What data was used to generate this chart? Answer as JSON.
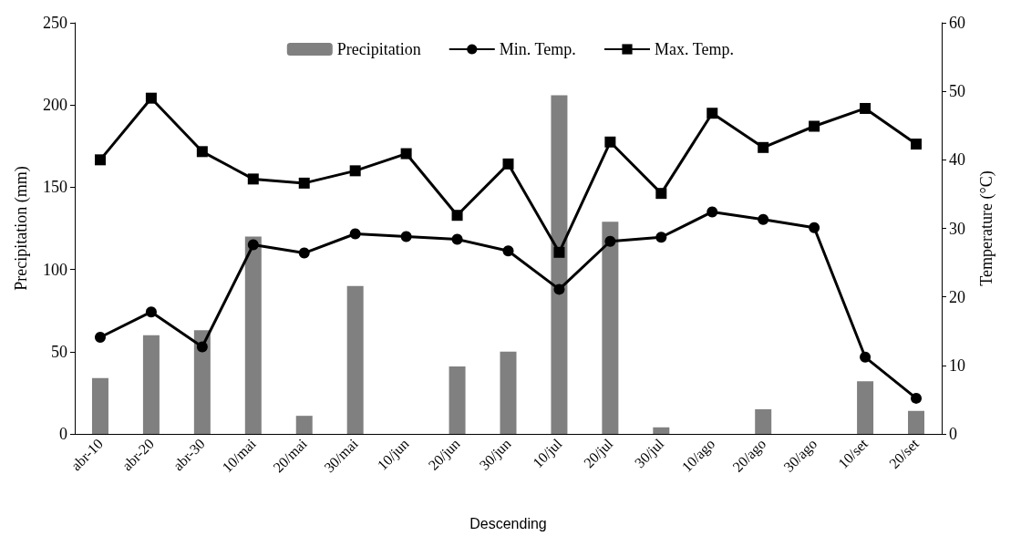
{
  "chart_data": {
    "type": "bar",
    "xlabel": "Descending",
    "ylabel": "Precipitation (mm)",
    "y2label": "Temperature (°C)",
    "categories": [
      "abr-10",
      "abr-20",
      "abr-30",
      "10/mai",
      "20/mai",
      "30/mai",
      "10/jun",
      "20/jun",
      "30/jun",
      "10/jul",
      "20/jul",
      "30/jul",
      "10/ago",
      "20/ago",
      "30/ago",
      "10/set",
      "20/set"
    ],
    "series": [
      {
        "name": "Precipitation",
        "color": "#808080",
        "values": [
          34,
          60,
          63,
          120,
          11,
          90,
          0,
          41,
          50,
          206,
          129,
          4,
          0,
          15,
          0,
          32,
          14
        ]
      },
      {
        "name": "Min. Temp.",
        "type": "line",
        "axis": "y2",
        "marker": "circle",
        "color": "#000000",
        "values": [
          14.1,
          17.8,
          12.7,
          27.6,
          26.4,
          29.2,
          28.8,
          28.4,
          26.7,
          21.1,
          28.1,
          28.7,
          32.4,
          31.3,
          30.1,
          11.2,
          5.2
        ]
      },
      {
        "name": "Max. Temp.",
        "type": "line",
        "axis": "y2",
        "marker": "square",
        "color": "#000000",
        "values": [
          40.0,
          49.0,
          41.2,
          37.2,
          36.6,
          38.4,
          40.9,
          31.9,
          39.4,
          26.5,
          42.6,
          35.1,
          46.8,
          41.8,
          44.9,
          47.5,
          42.3
        ]
      }
    ],
    "ylim": [
      0,
      250
    ],
    "yticks": [
      0,
      50,
      100,
      150,
      200,
      250
    ],
    "y2lim": [
      0,
      60
    ],
    "y2ticks": [
      0,
      10,
      20,
      30,
      40,
      50,
      60
    ],
    "grid": false,
    "legend": "top",
    "line_style": "solid"
  }
}
